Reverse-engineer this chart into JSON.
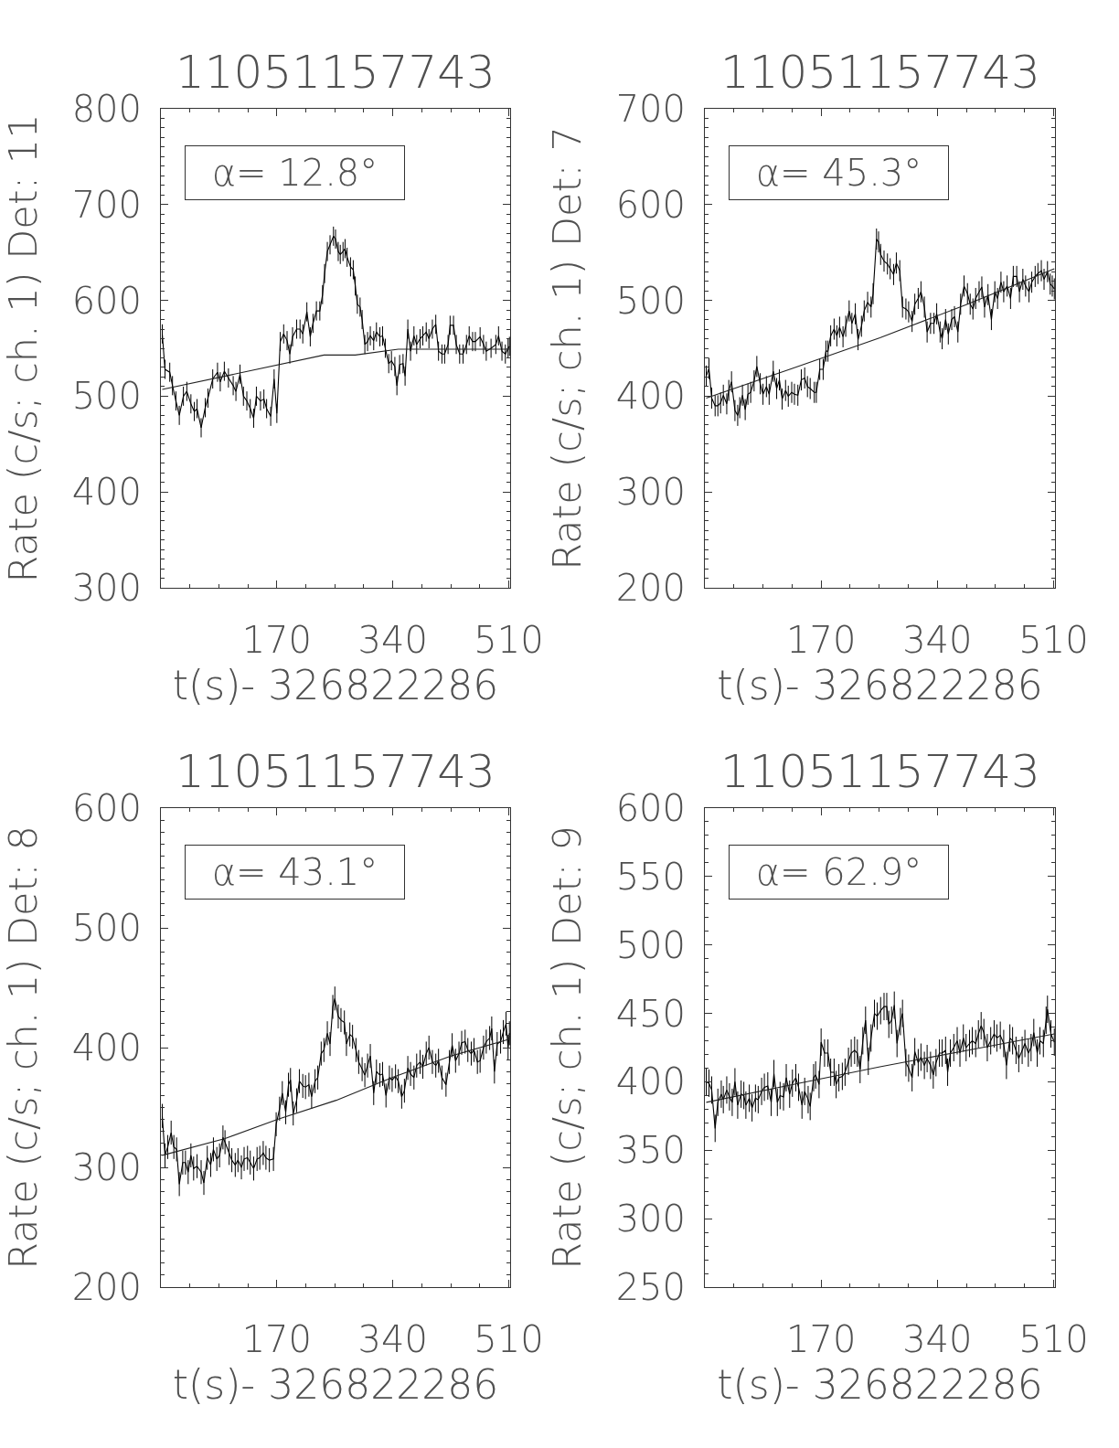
{
  "chart_data": [
    {
      "type": "line",
      "title": "11051157743",
      "xlabel": "t(s)- 326822286",
      "ylabel": "Rate (c/s; ch. 1) Det: 11",
      "annotations": [
        "α= 12.8°"
      ],
      "xlim": [
        0,
        512
      ],
      "ylim": [
        300,
        800
      ],
      "xticks": [
        {
          "value": 42.5,
          "label": null
        },
        {
          "value": 85,
          "label": null
        },
        {
          "value": 127.5,
          "label": null
        },
        170,
        {
          "value": 212.5,
          "label": null
        },
        {
          "value": 255,
          "label": null
        },
        {
          "value": 297.5,
          "label": null
        },
        340,
        {
          "value": 382.5,
          "label": null
        },
        {
          "value": 425,
          "label": null
        },
        {
          "value": 467.5,
          "label": null
        },
        510
      ],
      "yticks": [
        300,
        {
          "value": 310,
          "label": null
        },
        {
          "value": 320,
          "label": null
        },
        {
          "value": 330,
          "label": null
        },
        {
          "value": 340,
          "label": null
        },
        {
          "value": 350,
          "label": null
        },
        {
          "value": 360,
          "label": null
        },
        {
          "value": 370,
          "label": null
        },
        {
          "value": 380,
          "label": null
        },
        {
          "value": 390,
          "label": null
        },
        400,
        {
          "value": 410,
          "label": null
        },
        {
          "value": 420,
          "label": null
        },
        {
          "value": 430,
          "label": null
        },
        {
          "value": 440,
          "label": null
        },
        {
          "value": 450,
          "label": null
        },
        {
          "value": 460,
          "label": null
        },
        {
          "value": 470,
          "label": null
        },
        {
          "value": 480,
          "label": null
        },
        {
          "value": 490,
          "label": null
        },
        500,
        {
          "value": 510,
          "label": null
        },
        {
          "value": 520,
          "label": null
        },
        {
          "value": 530,
          "label": null
        },
        {
          "value": 540,
          "label": null
        },
        {
          "value": 550,
          "label": null
        },
        {
          "value": 560,
          "label": null
        },
        {
          "value": 570,
          "label": null
        },
        {
          "value": 580,
          "label": null
        },
        {
          "value": 590,
          "label": null
        },
        600,
        {
          "value": 610,
          "label": null
        },
        {
          "value": 620,
          "label": null
        },
        {
          "value": 630,
          "label": null
        },
        {
          "value": 640,
          "label": null
        },
        {
          "value": 650,
          "label": null
        },
        {
          "value": 660,
          "label": null
        },
        {
          "value": 670,
          "label": null
        },
        {
          "value": 680,
          "label": null
        },
        {
          "value": 690,
          "label": null
        },
        700,
        {
          "value": 710,
          "label": null
        },
        {
          "value": 720,
          "label": null
        },
        {
          "value": 730,
          "label": null
        },
        {
          "value": 740,
          "label": null
        },
        {
          "value": 750,
          "label": null
        },
        {
          "value": 760,
          "label": null
        },
        {
          "value": 770,
          "label": null
        },
        {
          "value": 780,
          "label": null
        },
        {
          "value": 790,
          "label": null
        },
        800
      ],
      "series": [
        {
          "color": "#000000",
          "x": [
            2,
            6,
            13,
            17,
            22,
            27,
            33,
            38,
            44,
            49,
            53,
            59,
            65,
            69,
            76,
            83,
            87,
            93,
            99,
            106,
            110,
            116,
            121,
            126,
            131,
            136,
            140,
            146,
            151,
            155,
            161,
            166,
            170,
            175,
            180,
            185,
            189,
            193,
            199,
            204,
            208,
            214,
            219,
            223,
            228,
            233,
            237,
            240,
            244,
            248,
            253,
            256,
            260,
            263,
            267,
            270,
            273,
            278,
            282,
            285,
            288,
            292,
            295,
            299,
            303,
            307,
            312,
            316,
            321,
            325,
            329,
            334,
            338,
            343,
            346,
            350,
            355,
            358,
            362,
            366,
            371,
            375,
            380,
            384,
            389,
            393,
            398,
            403,
            407,
            412,
            416,
            421,
            424,
            429,
            433,
            438,
            443,
            448,
            452,
            457,
            461,
            468,
            473,
            477,
            484,
            491,
            495,
            500,
            505,
            509,
            511
          ],
          "values": [
            565,
            528,
            525,
            511,
            495,
            480,
            500,
            505,
            492,
            484,
            487,
            467,
            488,
            498,
            518,
            525,
            515,
            526,
            519,
            511,
            505,
            523,
            500,
            495,
            487,
            477,
            500,
            495,
            497,
            487,
            479,
            518,
            482,
            557,
            565,
            558,
            544,
            562,
            570,
            570,
            565,
            588,
            562,
            576,
            589,
            589,
            606,
            628,
            651,
            658,
            667,
            664,
            651,
            648,
            651,
            654,
            645,
            635,
            632,
            615,
            596,
            593,
            580,
            554,
            557,
            563,
            558,
            567,
            562,
            563,
            550,
            534,
            537,
            531,
            511,
            533,
            534,
            521,
            570,
            547,
            563,
            554,
            560,
            563,
            567,
            560,
            570,
            575,
            547,
            544,
            544,
            554,
            574,
            574,
            554,
            544,
            544,
            554,
            563,
            557,
            557,
            562,
            554,
            547,
            550,
            554,
            563,
            547,
            544,
            550,
            552
          ],
          "errors": [
            10,
            10,
            10,
            10,
            10,
            10,
            10,
            10,
            10,
            10,
            10,
            10,
            10,
            10,
            10,
            10,
            10,
            10,
            10,
            10,
            10,
            10,
            10,
            10,
            10,
            10,
            10,
            10,
            10,
            10,
            10,
            10,
            10,
            10,
            10,
            10,
            10,
            10,
            10,
            10,
            10,
            10,
            10,
            10,
            10,
            10,
            10,
            10,
            10,
            10,
            10,
            10,
            10,
            10,
            10,
            10,
            10,
            10,
            10,
            10,
            10,
            10,
            10,
            10,
            10,
            10,
            10,
            10,
            10,
            10,
            10,
            10,
            10,
            10,
            10,
            10,
            10,
            10,
            10,
            10,
            10,
            10,
            10,
            10,
            10,
            10,
            10,
            10,
            10,
            10,
            10,
            10,
            10,
            10,
            10,
            10,
            10,
            10,
            10,
            10,
            10,
            10,
            10,
            10,
            10,
            10,
            10,
            10,
            10,
            10,
            10
          ]
        },
        {
          "color": "#222222",
          "x": [
            2,
            239,
            285,
            348,
            511
          ],
          "values": [
            507,
            543,
            543,
            549,
            549
          ]
        }
      ]
    },
    {
      "type": "line",
      "title": "11051157743",
      "xlabel": "t(s)- 326822286",
      "ylabel": "Rate (c/s; ch. 1) Det: 7",
      "annotations": [
        "α= 45.3°"
      ],
      "xlim": [
        0,
        512
      ],
      "ylim": [
        200,
        700
      ],
      "xticks": [
        {
          "value": 42.5,
          "label": null
        },
        {
          "value": 85,
          "label": null
        },
        {
          "value": 127.5,
          "label": null
        },
        170,
        {
          "value": 212.5,
          "label": null
        },
        {
          "value": 255,
          "label": null
        },
        {
          "value": 297.5,
          "label": null
        },
        340,
        {
          "value": 382.5,
          "label": null
        },
        {
          "value": 425,
          "label": null
        },
        {
          "value": 467.5,
          "label": null
        },
        510
      ],
      "yticks": [
        200,
        {
          "value": 210,
          "label": null
        },
        {
          "value": 220,
          "label": null
        },
        {
          "value": 230,
          "label": null
        },
        {
          "value": 240,
          "label": null
        },
        {
          "value": 250,
          "label": null
        },
        {
          "value": 260,
          "label": null
        },
        {
          "value": 270,
          "label": null
        },
        {
          "value": 280,
          "label": null
        },
        {
          "value": 290,
          "label": null
        },
        300,
        {
          "value": 310,
          "label": null
        },
        {
          "value": 320,
          "label": null
        },
        {
          "value": 330,
          "label": null
        },
        {
          "value": 340,
          "label": null
        },
        {
          "value": 350,
          "label": null
        },
        {
          "value": 360,
          "label": null
        },
        {
          "value": 370,
          "label": null
        },
        {
          "value": 380,
          "label": null
        },
        {
          "value": 390,
          "label": null
        },
        400,
        {
          "value": 410,
          "label": null
        },
        {
          "value": 420,
          "label": null
        },
        {
          "value": 430,
          "label": null
        },
        {
          "value": 440,
          "label": null
        },
        {
          "value": 450,
          "label": null
        },
        {
          "value": 460,
          "label": null
        },
        {
          "value": 470,
          "label": null
        },
        {
          "value": 480,
          "label": null
        },
        {
          "value": 490,
          "label": null
        },
        500,
        {
          "value": 510,
          "label": null
        },
        {
          "value": 520,
          "label": null
        },
        {
          "value": 530,
          "label": null
        },
        {
          "value": 540,
          "label": null
        },
        {
          "value": 550,
          "label": null
        },
        {
          "value": 560,
          "label": null
        },
        {
          "value": 570,
          "label": null
        },
        {
          "value": 580,
          "label": null
        },
        {
          "value": 590,
          "label": null
        },
        600,
        {
          "value": 610,
          "label": null
        },
        {
          "value": 620,
          "label": null
        },
        {
          "value": 630,
          "label": null
        },
        {
          "value": 640,
          "label": null
        },
        {
          "value": 650,
          "label": null
        },
        {
          "value": 660,
          "label": null
        },
        {
          "value": 670,
          "label": null
        },
        {
          "value": 680,
          "label": null
        },
        {
          "value": 690,
          "label": null
        },
        700
      ],
      "series": [
        {
          "color": "#000000",
          "x": [
            2,
            6,
            10,
            15,
            19,
            23,
            27,
            32,
            35,
            39,
            44,
            48,
            51,
            55,
            59,
            63,
            67,
            72,
            76,
            81,
            85,
            90,
            94,
            100,
            105,
            109,
            113,
            118,
            122,
            127,
            131,
            136,
            141,
            146,
            150,
            154,
            160,
            163,
            168,
            173,
            177,
            180,
            184,
            189,
            193,
            197,
            202,
            206,
            211,
            215,
            220,
            224,
            229,
            233,
            238,
            243,
            246,
            251,
            254,
            257,
            262,
            267,
            271,
            276,
            280,
            285,
            289,
            294,
            298,
            303,
            307,
            312,
            316,
            321,
            325,
            330,
            335,
            339,
            344,
            347,
            352,
            356,
            361,
            365,
            370,
            374,
            379,
            384,
            388,
            392,
            396,
            401,
            405,
            409,
            414,
            419,
            424,
            428,
            433,
            437,
            442,
            447,
            451,
            456,
            460,
            465,
            469,
            474,
            478,
            483,
            487,
            492,
            496,
            501,
            505,
            508,
            511
          ],
          "values": [
            421,
            429,
            398,
            390,
            390,
            393,
            401,
            392,
            406,
            415,
            385,
            380,
            388,
            401,
            386,
            402,
            404,
            416,
            431,
            413,
            402,
            410,
            402,
            426,
            408,
            417,
            397,
            406,
            400,
            404,
            402,
            401,
            417,
            419,
            410,
            408,
            404,
            404,
            428,
            428,
            447,
            447,
            463,
            470,
            463,
            472,
            462,
            473,
            489,
            476,
            486,
            459,
            473,
            489,
            498,
            493,
            507,
            564,
            561,
            548,
            541,
            538,
            533,
            527,
            539,
            531,
            493,
            491,
            488,
            478,
            496,
            502,
            509,
            493,
            467,
            476,
            476,
            486,
            467,
            460,
            480,
            465,
            480,
            483,
            467,
            496,
            515,
            507,
            496,
            491,
            502,
            509,
            514,
            493,
            506,
            480,
            509,
            502,
            519,
            509,
            515,
            502,
            525,
            525,
            509,
            522,
            515,
            509,
            519,
            525,
            528,
            531,
            522,
            530,
            517,
            515,
            512
          ],
          "errors": [
            11,
            11,
            11,
            11,
            11,
            11,
            11,
            11,
            11,
            11,
            11,
            11,
            11,
            11,
            11,
            11,
            11,
            11,
            11,
            11,
            11,
            11,
            11,
            11,
            11,
            11,
            11,
            11,
            11,
            11,
            11,
            11,
            11,
            11,
            11,
            11,
            11,
            11,
            11,
            11,
            11,
            11,
            11,
            11,
            11,
            11,
            11,
            11,
            11,
            11,
            11,
            11,
            11,
            11,
            11,
            11,
            11,
            11,
            11,
            11,
            11,
            11,
            11,
            11,
            11,
            11,
            11,
            11,
            11,
            11,
            11,
            11,
            11,
            11,
            11,
            11,
            11,
            11,
            11,
            11,
            11,
            11,
            11,
            11,
            11,
            11,
            11,
            11,
            11,
            11,
            11,
            11,
            11,
            11,
            11,
            11,
            11,
            11,
            11,
            11,
            11,
            11,
            11,
            11,
            11,
            11,
            11,
            11,
            11,
            11,
            11,
            11,
            11,
            11,
            11,
            11,
            11
          ]
        },
        {
          "color": "#222222",
          "x": [
            2,
            128,
            256,
            384,
            511
          ],
          "values": [
            398,
            429,
            461,
            496,
            533
          ]
        }
      ]
    },
    {
      "type": "line",
      "title": "11051157743",
      "xlabel": "t(s)- 326822286",
      "ylabel": "Rate (c/s; ch. 1) Det: 8",
      "annotations": [
        "α= 43.1°"
      ],
      "xlim": [
        0,
        512
      ],
      "ylim": [
        200,
        600
      ],
      "xticks": [
        {
          "value": 42.5,
          "label": null
        },
        {
          "value": 85,
          "label": null
        },
        {
          "value": 127.5,
          "label": null
        },
        170,
        {
          "value": 212.5,
          "label": null
        },
        {
          "value": 255,
          "label": null
        },
        {
          "value": 297.5,
          "label": null
        },
        340,
        {
          "value": 382.5,
          "label": null
        },
        {
          "value": 425,
          "label": null
        },
        {
          "value": 467.5,
          "label": null
        },
        510
      ],
      "yticks": [
        200,
        {
          "value": 210,
          "label": null
        },
        {
          "value": 220,
          "label": null
        },
        {
          "value": 230,
          "label": null
        },
        {
          "value": 240,
          "label": null
        },
        {
          "value": 250,
          "label": null
        },
        {
          "value": 260,
          "label": null
        },
        {
          "value": 270,
          "label": null
        },
        {
          "value": 280,
          "label": null
        },
        {
          "value": 290,
          "label": null
        },
        300,
        {
          "value": 310,
          "label": null
        },
        {
          "value": 320,
          "label": null
        },
        {
          "value": 330,
          "label": null
        },
        {
          "value": 340,
          "label": null
        },
        {
          "value": 350,
          "label": null
        },
        {
          "value": 360,
          "label": null
        },
        {
          "value": 370,
          "label": null
        },
        {
          "value": 380,
          "label": null
        },
        {
          "value": 390,
          "label": null
        },
        400,
        {
          "value": 410,
          "label": null
        },
        {
          "value": 420,
          "label": null
        },
        {
          "value": 430,
          "label": null
        },
        {
          "value": 440,
          "label": null
        },
        {
          "value": 450,
          "label": null
        },
        {
          "value": 460,
          "label": null
        },
        {
          "value": 470,
          "label": null
        },
        {
          "value": 480,
          "label": null
        },
        {
          "value": 490,
          "label": null
        },
        500,
        {
          "value": 510,
          "label": null
        },
        {
          "value": 520,
          "label": null
        },
        {
          "value": 530,
          "label": null
        },
        {
          "value": 540,
          "label": null
        },
        {
          "value": 550,
          "label": null
        },
        {
          "value": 560,
          "label": null
        },
        {
          "value": 570,
          "label": null
        },
        {
          "value": 580,
          "label": null
        },
        {
          "value": 590,
          "label": null
        },
        600
      ],
      "series": [
        {
          "color": "#000000",
          "x": [
            2,
            6,
            10,
            15,
            19,
            23,
            27,
            32,
            36,
            40,
            44,
            48,
            53,
            59,
            63,
            68,
            73,
            77,
            82,
            86,
            91,
            94,
            100,
            104,
            109,
            113,
            118,
            122,
            127,
            131,
            136,
            141,
            145,
            150,
            154,
            159,
            165,
            169,
            174,
            178,
            183,
            187,
            190,
            194,
            199,
            203,
            208,
            212,
            217,
            221,
            226,
            230,
            235,
            239,
            244,
            248,
            252,
            255,
            260,
            264,
            269,
            272,
            277,
            281,
            286,
            290,
            295,
            299,
            303,
            307,
            312,
            316,
            321,
            325,
            330,
            335,
            339,
            344,
            348,
            353,
            357,
            362,
            366,
            371,
            375,
            380,
            384,
            389,
            393,
            398,
            403,
            407,
            412,
            418,
            423,
            427,
            432,
            437,
            441,
            446,
            450,
            455,
            459,
            464,
            468,
            473,
            477,
            482,
            485,
            489,
            493,
            498,
            502,
            506,
            509,
            511
          ],
          "values": [
            343,
            310,
            317,
            329,
            317,
            315,
            286,
            304,
            304,
            296,
            310,
            299,
            301,
            296,
            287,
            308,
            302,
            315,
            307,
            310,
            325,
            321,
            312,
            306,
            302,
            306,
            300,
            307,
            308,
            304,
            299,
            307,
            308,
            312,
            308,
            306,
            307,
            336,
            349,
            362,
            346,
            369,
            373,
            345,
            356,
            372,
            368,
            367,
            369,
            359,
            372,
            375,
            395,
            398,
            412,
            403,
            434,
            441,
            426,
            423,
            421,
            403,
            411,
            409,
            398,
            388,
            382,
            377,
            385,
            393,
            362,
            380,
            377,
            378,
            360,
            375,
            373,
            376,
            372,
            359,
            364,
            383,
            378,
            375,
            385,
            388,
            384,
            395,
            400,
            388,
            385,
            389,
            375,
            369,
            388,
            402,
            389,
            395,
            404,
            405,
            398,
            395,
            398,
            388,
            389,
            400,
            405,
            408,
            416,
            380,
            403,
            405,
            413,
            420,
            400,
            412
          ],
          "errors": [
            10,
            10,
            10,
            10,
            10,
            10,
            10,
            10,
            10,
            10,
            10,
            10,
            10,
            10,
            10,
            10,
            10,
            10,
            10,
            10,
            10,
            10,
            10,
            10,
            10,
            10,
            10,
            10,
            10,
            10,
            10,
            10,
            10,
            10,
            10,
            10,
            10,
            10,
            10,
            10,
            10,
            10,
            10,
            10,
            10,
            10,
            10,
            10,
            10,
            10,
            10,
            10,
            10,
            10,
            10,
            10,
            10,
            10,
            10,
            10,
            10,
            10,
            10,
            10,
            10,
            10,
            10,
            10,
            10,
            10,
            10,
            10,
            10,
            10,
            10,
            10,
            10,
            10,
            10,
            10,
            10,
            10,
            10,
            10,
            10,
            10,
            10,
            10,
            10,
            10,
            10,
            10,
            10,
            10,
            10,
            10,
            10,
            10,
            10,
            10,
            10,
            10,
            10,
            10,
            10,
            10,
            10,
            10,
            10,
            10,
            10,
            10,
            10,
            10,
            10,
            10
          ]
        },
        {
          "color": "#222222",
          "x": [
            2,
            94,
            171,
            257,
            339,
            425,
            511
          ],
          "values": [
            310,
            324,
            340,
            356,
            375,
            393,
            407
          ]
        }
      ]
    },
    {
      "type": "line",
      "title": "11051157743",
      "xlabel": "t(s)- 326822286",
      "ylabel": "Rate (c/s; ch. 1) Det: 9",
      "annotations": [
        "α= 62.9°"
      ],
      "xlim": [
        0,
        512
      ],
      "ylim": [
        250,
        600
      ],
      "xticks": [
        {
          "value": 42.5,
          "label": null
        },
        {
          "value": 85,
          "label": null
        },
        {
          "value": 127.5,
          "label": null
        },
        170,
        {
          "value": 212.5,
          "label": null
        },
        {
          "value": 255,
          "label": null
        },
        {
          "value": 297.5,
          "label": null
        },
        340,
        {
          "value": 382.5,
          "label": null
        },
        {
          "value": 425,
          "label": null
        },
        {
          "value": 467.5,
          "label": null
        },
        510
      ],
      "yticks": [
        250,
        {
          "value": 260,
          "label": null
        },
        {
          "value": 270,
          "label": null
        },
        {
          "value": 280,
          "label": null
        },
        {
          "value": 290,
          "label": null
        },
        300,
        {
          "value": 310,
          "label": null
        },
        {
          "value": 320,
          "label": null
        },
        {
          "value": 330,
          "label": null
        },
        {
          "value": 340,
          "label": null
        },
        350,
        {
          "value": 360,
          "label": null
        },
        {
          "value": 370,
          "label": null
        },
        {
          "value": 380,
          "label": null
        },
        {
          "value": 390,
          "label": null
        },
        400,
        {
          "value": 410,
          "label": null
        },
        {
          "value": 420,
          "label": null
        },
        {
          "value": 430,
          "label": null
        },
        {
          "value": 440,
          "label": null
        },
        450,
        {
          "value": 460,
          "label": null
        },
        {
          "value": 470,
          "label": null
        },
        {
          "value": 480,
          "label": null
        },
        {
          "value": 490,
          "label": null
        },
        500,
        {
          "value": 510,
          "label": null
        },
        {
          "value": 520,
          "label": null
        },
        {
          "value": 530,
          "label": null
        },
        {
          "value": 540,
          "label": null
        },
        550,
        {
          "value": 560,
          "label": null
        },
        {
          "value": 570,
          "label": null
        },
        {
          "value": 580,
          "label": null
        },
        {
          "value": 590,
          "label": null
        },
        600
      ],
      "series": [
        {
          "color": "#000000",
          "x": [
            2,
            6,
            10,
            15,
            19,
            24,
            27,
            32,
            36,
            40,
            44,
            48,
            53,
            57,
            60,
            65,
            69,
            74,
            78,
            83,
            87,
            92,
            97,
            101,
            106,
            110,
            115,
            119,
            124,
            128,
            133,
            137,
            142,
            146,
            151,
            154,
            159,
            162,
            167,
            170,
            175,
            180,
            184,
            189,
            192,
            196,
            201,
            205,
            210,
            214,
            219,
            223,
            227,
            231,
            235,
            239,
            243,
            248,
            252,
            257,
            262,
            266,
            269,
            273,
            277,
            281,
            286,
            289,
            294,
            298,
            303,
            307,
            312,
            316,
            321,
            325,
            330,
            334,
            338,
            343,
            347,
            352,
            355,
            359,
            364,
            369,
            373,
            378,
            382,
            387,
            391,
            396,
            400,
            404,
            408,
            413,
            418,
            423,
            427,
            432,
            437,
            441,
            446,
            450,
            455,
            459,
            464,
            468,
            473,
            477,
            481,
            486,
            490,
            495,
            499,
            501,
            506,
            511
          ],
          "values": [
            400,
            399,
            394,
            366,
            385,
            391,
            387,
            394,
            389,
            385,
            400,
            383,
            391,
            390,
            383,
            388,
            381,
            388,
            387,
            393,
            396,
            397,
            385,
            406,
            385,
            390,
            389,
            403,
            391,
            399,
            403,
            396,
            383,
            393,
            387,
            382,
            403,
            405,
            398,
            429,
            421,
            421,
            407,
            407,
            398,
            403,
            404,
            407,
            415,
            421,
            423,
            421,
            409,
            430,
            445,
            415,
            432,
            450,
            448,
            452,
            455,
            455,
            442,
            445,
            456,
            428,
            444,
            450,
            414,
            410,
            403,
            422,
            414,
            418,
            412,
            417,
            412,
            405,
            414,
            421,
            421,
            423,
            407,
            421,
            425,
            430,
            421,
            432,
            425,
            428,
            430,
            428,
            435,
            441,
            436,
            425,
            430,
            435,
            432,
            434,
            428,
            412,
            432,
            430,
            423,
            417,
            423,
            428,
            421,
            425,
            436,
            421,
            430,
            428,
            445,
            453,
            435,
            429
          ],
          "errors": [
            10,
            10,
            10,
            10,
            10,
            10,
            10,
            10,
            10,
            10,
            10,
            10,
            10,
            10,
            10,
            10,
            10,
            10,
            10,
            10,
            10,
            10,
            10,
            10,
            10,
            10,
            10,
            10,
            10,
            10,
            10,
            10,
            10,
            10,
            10,
            10,
            10,
            10,
            10,
            10,
            10,
            10,
            10,
            10,
            10,
            10,
            10,
            10,
            10,
            10,
            10,
            10,
            10,
            10,
            10,
            10,
            10,
            10,
            10,
            10,
            10,
            10,
            10,
            10,
            10,
            10,
            10,
            10,
            10,
            10,
            10,
            10,
            10,
            10,
            10,
            10,
            10,
            10,
            10,
            10,
            10,
            10,
            10,
            10,
            10,
            10,
            10,
            10,
            10,
            10,
            10,
            10,
            10,
            10,
            10,
            10,
            10,
            10,
            10,
            10,
            10,
            10,
            10,
            10,
            10,
            10,
            10,
            10,
            10,
            10,
            10,
            10,
            10,
            10,
            10,
            10,
            10,
            10
          ]
        },
        {
          "color": "#222222",
          "x": [
            2,
            128,
            256,
            384,
            511
          ],
          "values": [
            385,
            398,
            411,
            423,
            435
          ]
        }
      ]
    }
  ]
}
